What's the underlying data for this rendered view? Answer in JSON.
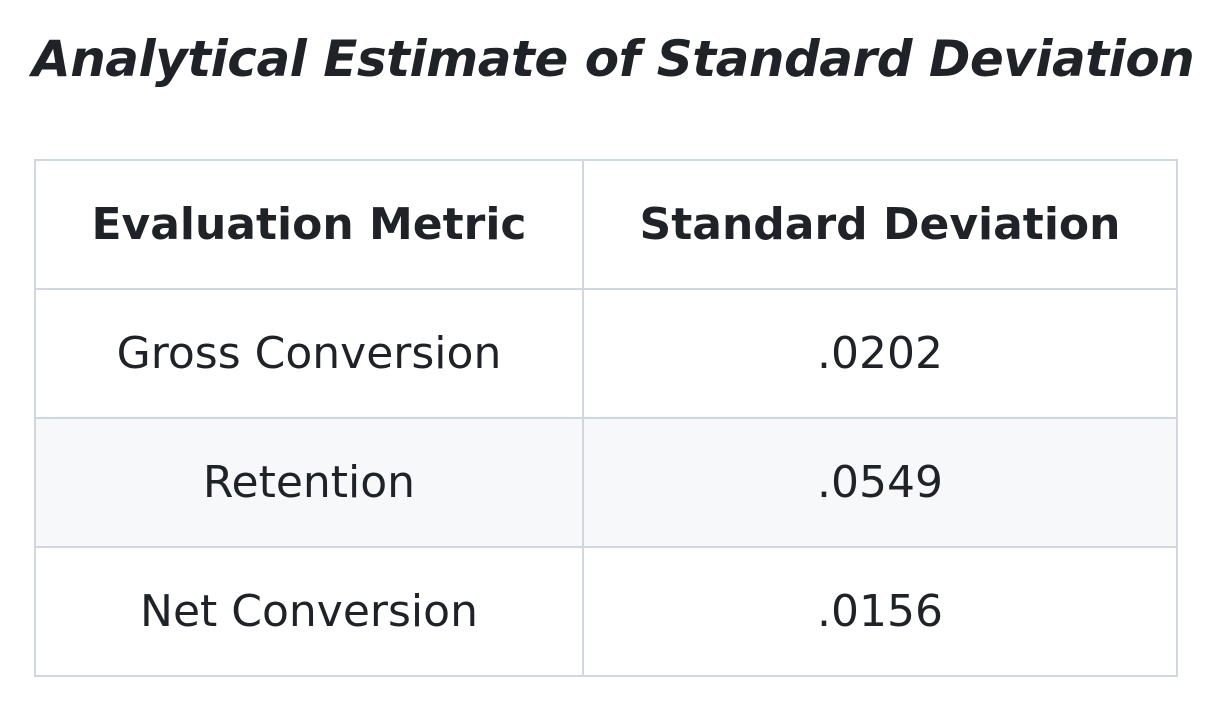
{
  "heading": "Analytical Estimate of Standard Deviation",
  "table": {
    "headers": [
      "Evaluation Metric",
      "Standard Deviation"
    ],
    "rows": [
      [
        "Gross Conversion",
        ".0202"
      ],
      [
        "Retention",
        ".0549"
      ],
      [
        "Net Conversion",
        ".0156"
      ]
    ]
  },
  "colors": {
    "text": "#1f2328",
    "border": "#d0d7de",
    "striped_row": "#f6f8fa"
  }
}
